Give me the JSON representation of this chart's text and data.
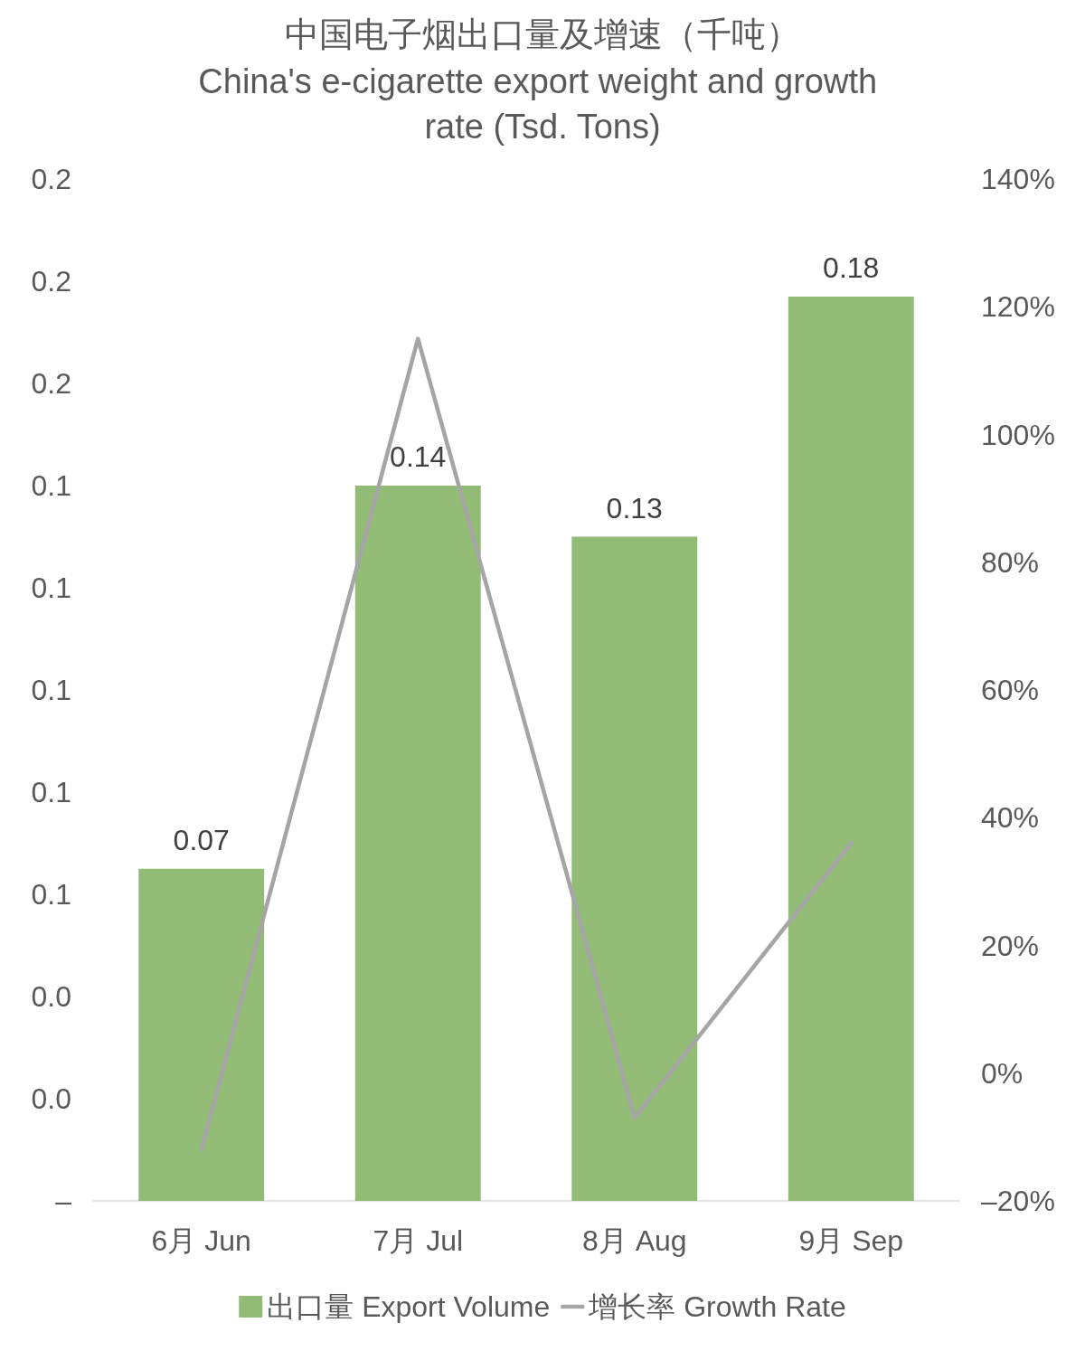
{
  "chart_data": {
    "type": "bar",
    "title": "中国电子烟出口量及增速（千吨）",
    "subtitle": "China's e-cigarette export weight and growth rate (Tsd. Tons)",
    "categories": [
      "6月 Jun",
      "7月 Jul",
      "8月 Aug",
      "9月 Sep"
    ],
    "series": [
      {
        "name": "出口量 Export Volume",
        "color": "#92bb76",
        "values": [
          0.065,
          0.14,
          0.13,
          0.177
        ],
        "value_labels": [
          "0.07",
          "0.14",
          "0.13",
          "0.18"
        ]
      },
      {
        "name": "增长率 Growth Rate",
        "type": "line",
        "axis": "y2",
        "color": "#a5a5a5",
        "values": [
          -12,
          115,
          -7,
          36
        ]
      }
    ],
    "ylim": [
      0,
      0.2
    ],
    "yticks": [
      {
        "value": 0,
        "label": "–"
      },
      {
        "value": 0.02,
        "label": "0.0"
      },
      {
        "value": 0.04,
        "label": "0.0"
      },
      {
        "value": 0.06,
        "label": "0.1"
      },
      {
        "value": 0.08,
        "label": "0.1"
      },
      {
        "value": 0.1,
        "label": "0.1"
      },
      {
        "value": 0.12,
        "label": "0.1"
      },
      {
        "value": 0.14,
        "label": "0.1"
      },
      {
        "value": 0.16,
        "label": "0.2"
      },
      {
        "value": 0.18,
        "label": "0.2"
      },
      {
        "value": 0.2,
        "label": "0.2"
      }
    ],
    "y2lim": [
      -20,
      140
    ],
    "y2ticks": [
      {
        "value": -20,
        "label": "–20%"
      },
      {
        "value": 0,
        "label": "0%"
      },
      {
        "value": 20,
        "label": "20%"
      },
      {
        "value": 40,
        "label": "40%"
      },
      {
        "value": 60,
        "label": "60%"
      },
      {
        "value": 80,
        "label": "80%"
      },
      {
        "value": 100,
        "label": "100%"
      },
      {
        "value": 120,
        "label": "120%"
      },
      {
        "value": 140,
        "label": "140%"
      }
    ],
    "grid": false,
    "legend": "bottom",
    "marker": "none"
  }
}
